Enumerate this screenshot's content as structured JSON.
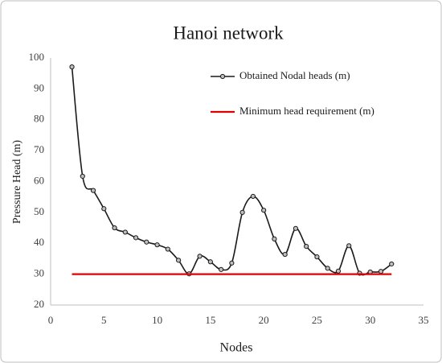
{
  "chart_data": {
    "type": "line",
    "title": "Hanoi network",
    "x_label": "Nodes",
    "y_label": "Pressure Head (m)",
    "xlim": [
      0,
      35
    ],
    "xticks": [
      0,
      5,
      10,
      15,
      20,
      25,
      30,
      35
    ],
    "ylim": [
      20,
      100
    ],
    "yticks": [
      20,
      30,
      40,
      50,
      60,
      70,
      80,
      90,
      100
    ],
    "grid": false,
    "legend": "upper right",
    "series": [
      {
        "name": "Obtained Nodal heads (m)",
        "color": "#1a1a1a",
        "markers": true,
        "smooth": true,
        "x": [
          2,
          3,
          4,
          5,
          6,
          7,
          8,
          9,
          10,
          11,
          12,
          13,
          14,
          15,
          16,
          17,
          18,
          19,
          20,
          21,
          22,
          23,
          24,
          25,
          26,
          27,
          28,
          29,
          30,
          31,
          32
        ],
        "values": [
          97.1,
          61.7,
          57.1,
          51.2,
          45.0,
          43.6,
          41.8,
          40.4,
          39.5,
          38.1,
          34.5,
          30.1,
          35.8,
          34.0,
          31.5,
          33.6,
          50.0,
          55.2,
          50.7,
          41.4,
          36.4,
          44.8,
          39.0,
          35.6,
          31.9,
          31.0,
          39.2,
          30.3,
          30.7,
          30.9,
          33.3
        ]
      },
      {
        "name": "Minimum head requirement (m)",
        "color": "#e00000",
        "markers": false,
        "smooth": false,
        "x": [
          2,
          32
        ],
        "values": [
          30,
          30
        ]
      }
    ]
  }
}
